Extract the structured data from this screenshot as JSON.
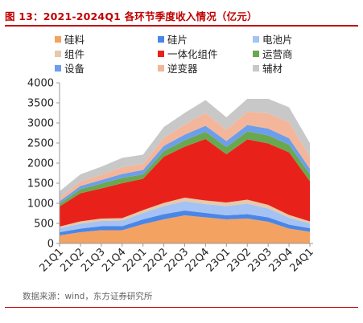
{
  "header": {
    "title": "图 13：2021-2024Q1 各环节季度收入情况（亿元）"
  },
  "footer": {
    "source": "数据来源：wind，东方证券研究所"
  },
  "colors": {
    "accent": "#c00000",
    "axis": "#9a9a9a"
  },
  "chart_data": {
    "type": "area",
    "stacked": true,
    "categories": [
      "21Q1",
      "21Q2",
      "21Q3",
      "21Q4",
      "22Q1",
      "22Q2",
      "22Q3",
      "22Q4",
      "23Q1",
      "23Q2",
      "23Q3",
      "23Q4",
      "24Q1"
    ],
    "ylim": [
      0,
      4000
    ],
    "yticks": [
      "0",
      "500",
      "1000",
      "1500",
      "2000",
      "2500",
      "3000",
      "3500",
      "4000"
    ],
    "grid": false,
    "legend_position": "top",
    "series": [
      {
        "name": "硅料",
        "color": "#f4a261",
        "values": [
          200,
          280,
          330,
          330,
          480,
          600,
          700,
          650,
          600,
          620,
          540,
          370,
          290
        ]
      },
      {
        "name": "硅片",
        "color": "#4a86e8",
        "values": [
          80,
          90,
          100,
          100,
          120,
          130,
          120,
          110,
          100,
          110,
          110,
          100,
          90
        ]
      },
      {
        "name": "电池片",
        "color": "#a4c2f4",
        "values": [
          100,
          120,
          130,
          140,
          160,
          200,
          230,
          220,
          230,
          260,
          220,
          170,
          120
        ]
      },
      {
        "name": "组件",
        "color": "#e6c9a8",
        "values": [
          40,
          60,
          60,
          60,
          70,
          80,
          90,
          90,
          90,
          100,
          90,
          70,
          50
        ]
      },
      {
        "name": "一体化组件",
        "color": "#e8221b",
        "values": [
          500,
          700,
          750,
          870,
          780,
          1150,
          1270,
          1530,
          1200,
          1500,
          1530,
          1560,
          1000
        ]
      },
      {
        "name": "运营商",
        "color": "#6aa84f",
        "values": [
          70,
          100,
          120,
          130,
          110,
          140,
          160,
          180,
          180,
          200,
          200,
          190,
          170
        ]
      },
      {
        "name": "设备",
        "color": "#6d9eeb",
        "values": [
          60,
          80,
          90,
          100,
          110,
          130,
          140,
          150,
          150,
          160,
          170,
          160,
          140
        ]
      },
      {
        "name": "逆变器",
        "color": "#f4b69a",
        "values": [
          80,
          110,
          130,
          170,
          150,
          200,
          250,
          320,
          280,
          330,
          380,
          400,
          300
        ]
      },
      {
        "name": "辅材",
        "color": "#c8c8c8",
        "values": [
          170,
          180,
          200,
          230,
          230,
          270,
          290,
          320,
          310,
          320,
          360,
          370,
          340
        ]
      }
    ]
  }
}
